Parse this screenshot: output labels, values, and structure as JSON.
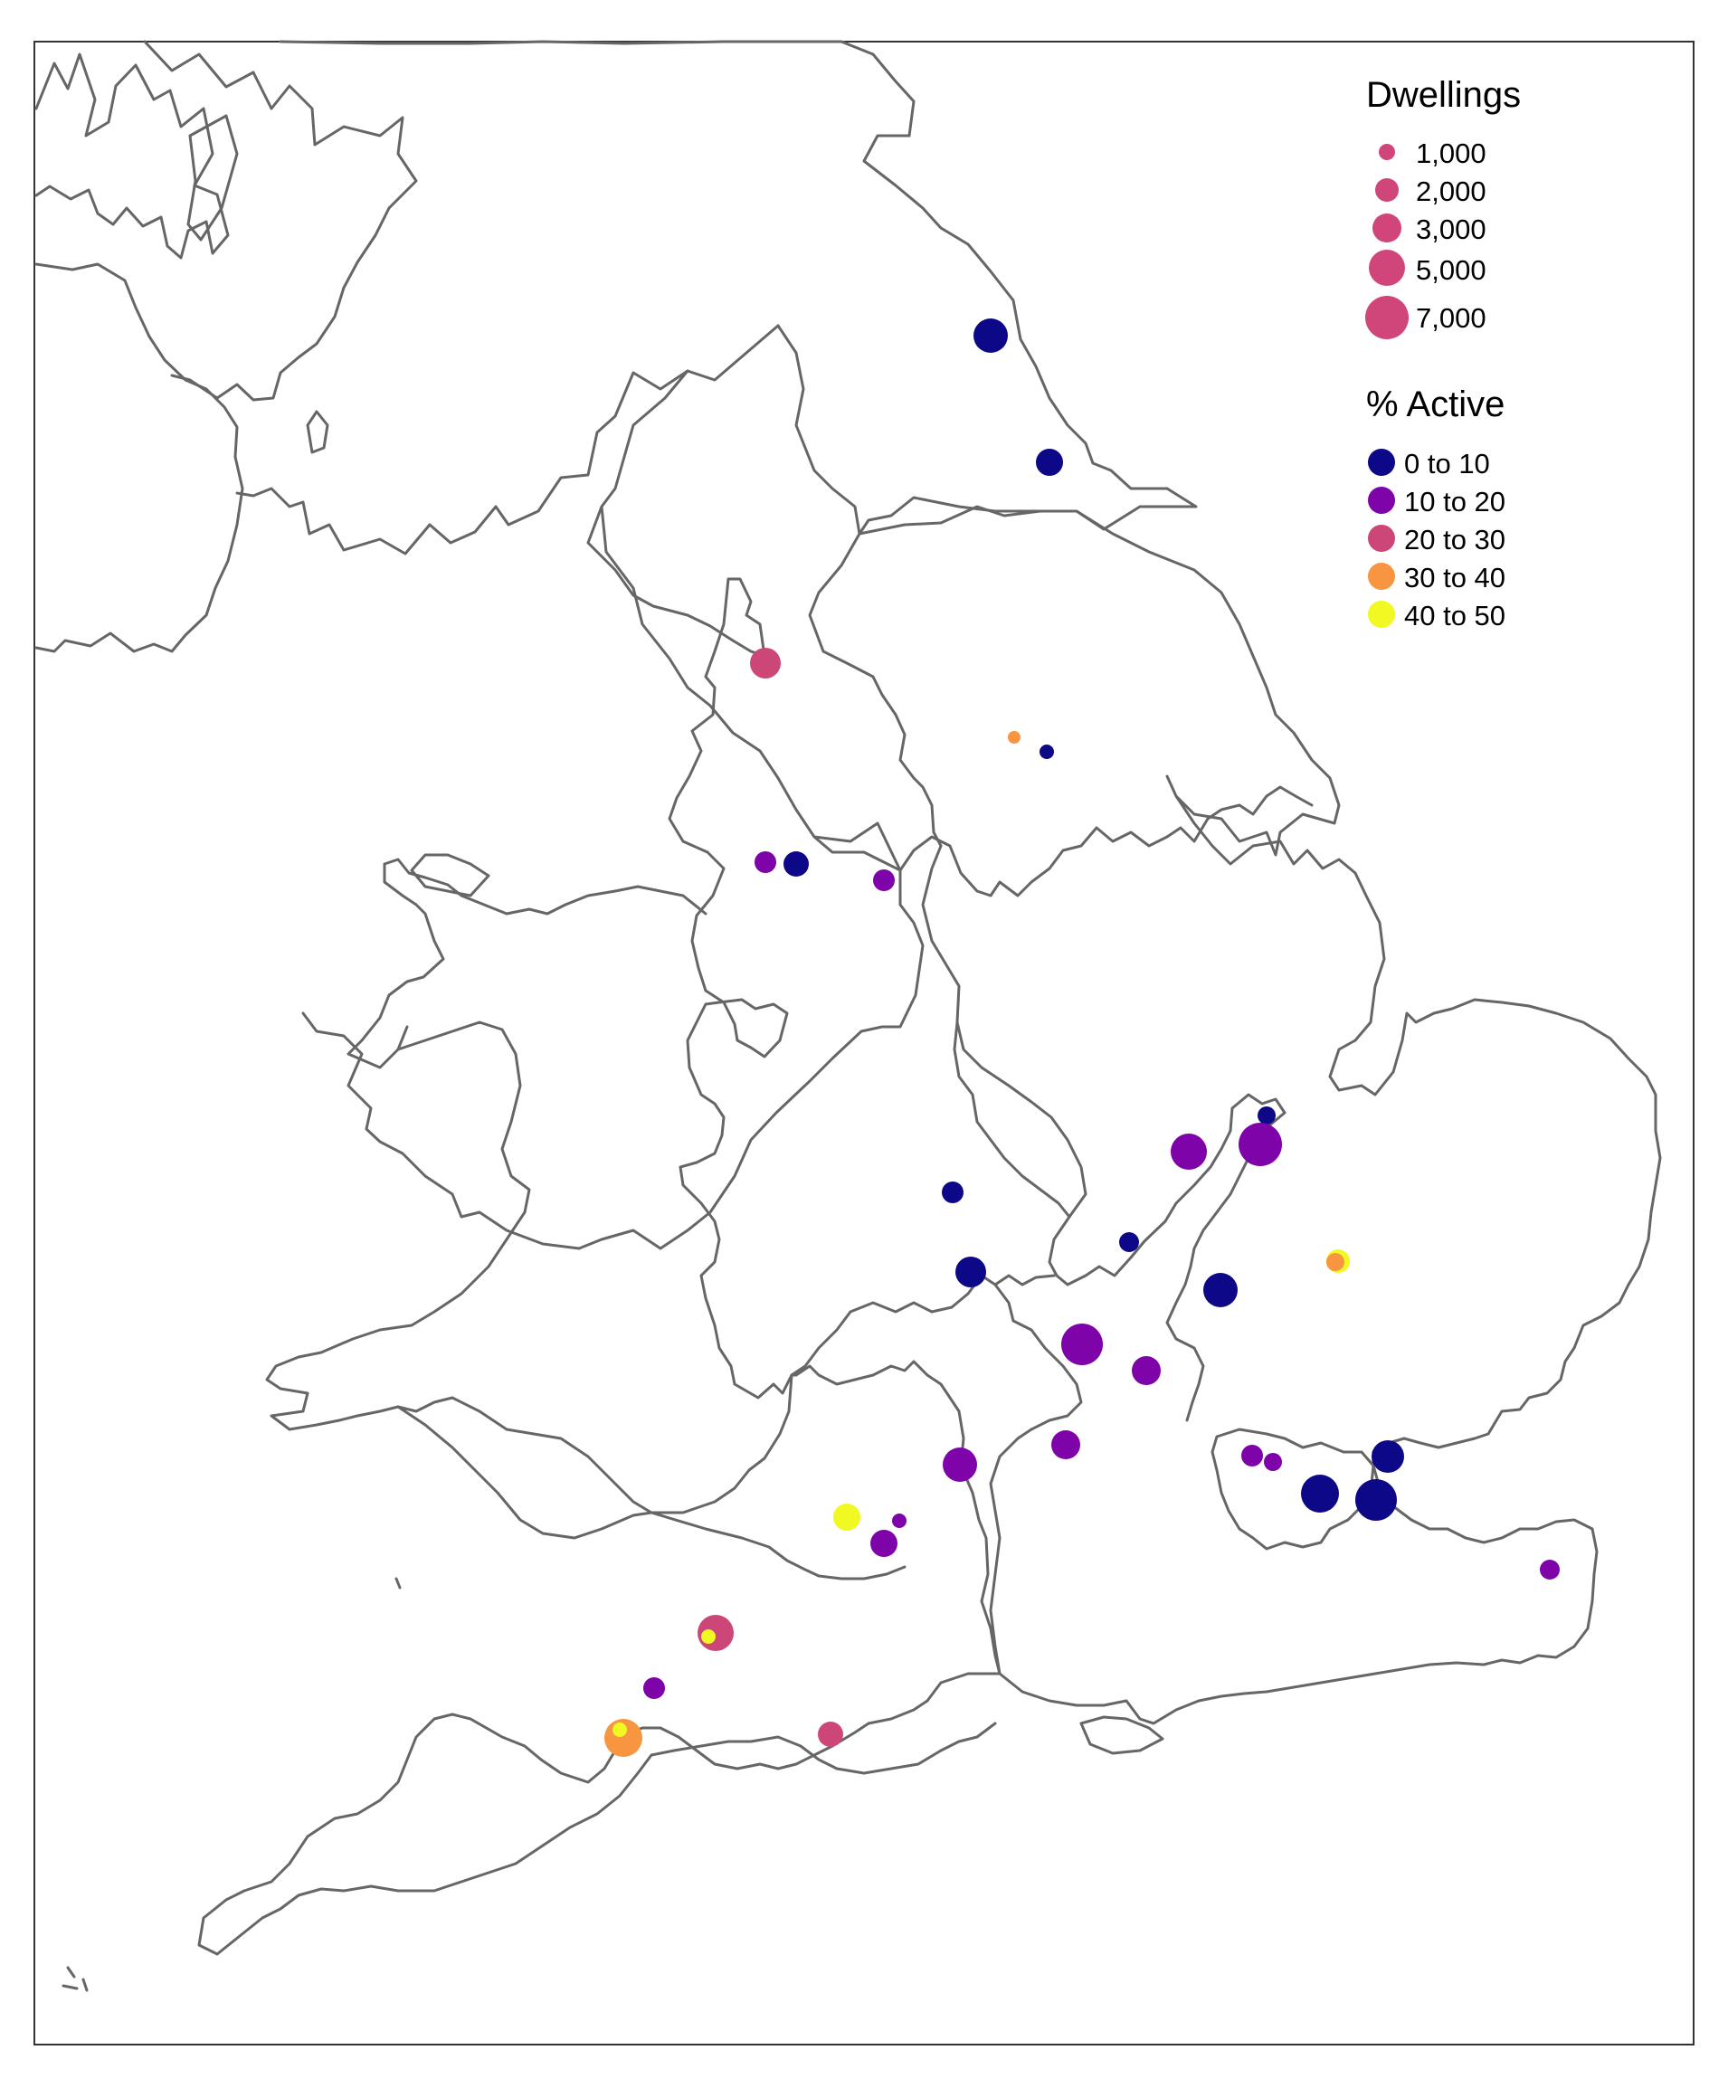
{
  "legend": {
    "size": {
      "title": "Dwellings",
      "color": "#d0457a",
      "items": [
        {
          "label": "1,000",
          "value": 1000
        },
        {
          "label": "2,000",
          "value": 2000
        },
        {
          "label": "3,000",
          "value": 3000
        },
        {
          "label": "5,000",
          "value": 5000
        },
        {
          "label": "7,000",
          "value": 7000
        }
      ]
    },
    "color": {
      "title": "% Active",
      "items": [
        {
          "label": "0 to 10",
          "color": "#0d0887"
        },
        {
          "label": "10 to 20",
          "color": "#7e03a8"
        },
        {
          "label": "20 to 30",
          "color": "#cc4778"
        },
        {
          "label": "30 to 40",
          "color": "#f89540"
        },
        {
          "label": "40 to 50",
          "color": "#f0f921"
        }
      ]
    }
  },
  "map": {
    "region": "England and Wales",
    "boundary_color": "#666666",
    "background": "#ffffff"
  }
}
